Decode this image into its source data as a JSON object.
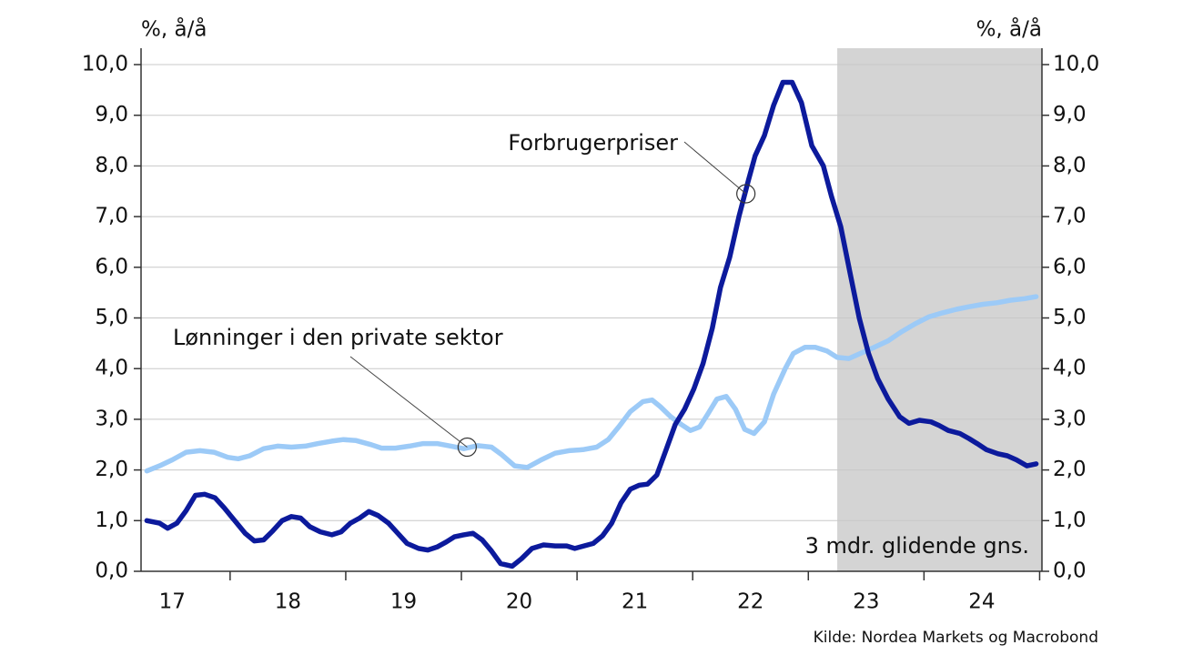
{
  "chart_data": {
    "type": "line",
    "y_unit_left": "%, å/å",
    "y_unit_right": "%, å/å",
    "source": "Kilde: Nordea Markets og Macrobond",
    "shaded_region": {
      "from": 2023.25,
      "to": 2025.02,
      "color": "#d4d4d4",
      "label": "3 mdr. glidende gns."
    },
    "xlim": [
      2017.23,
      2025.02
    ],
    "xticks": [
      {
        "value": 2017.5,
        "label": "17"
      },
      {
        "value": 2018.5,
        "label": "18"
      },
      {
        "value": 2019.5,
        "label": "19"
      },
      {
        "value": 2020.5,
        "label": "20"
      },
      {
        "value": 2021.5,
        "label": "21"
      },
      {
        "value": 2022.5,
        "label": "22"
      },
      {
        "value": 2023.5,
        "label": "23"
      },
      {
        "value": 2024.5,
        "label": "24"
      }
    ],
    "ylim": [
      0,
      10
    ],
    "yticks": [
      {
        "value": 0,
        "label": "0,0"
      },
      {
        "value": 1,
        "label": "1,0"
      },
      {
        "value": 2,
        "label": "2,0"
      },
      {
        "value": 3,
        "label": "3,0"
      },
      {
        "value": 4,
        "label": "4,0"
      },
      {
        "value": 5,
        "label": "5,0"
      },
      {
        "value": 6,
        "label": "6,0"
      },
      {
        "value": 7,
        "label": "7,0"
      },
      {
        "value": 8,
        "label": "8,0"
      },
      {
        "value": 9,
        "label": "9,0"
      },
      {
        "value": 10,
        "label": "10,0"
      }
    ],
    "y2lim": [
      0,
      10
    ],
    "y2ticks": [
      {
        "value": 0,
        "label": "0,0"
      },
      {
        "value": 1,
        "label": "1,0"
      },
      {
        "value": 2,
        "label": "2,0"
      },
      {
        "value": 3,
        "label": "3,0"
      },
      {
        "value": 4,
        "label": "4,0"
      },
      {
        "value": 5,
        "label": "5,0"
      },
      {
        "value": 6,
        "label": "6,0"
      },
      {
        "value": 7,
        "label": "7,0"
      },
      {
        "value": 8,
        "label": "8,0"
      },
      {
        "value": 9,
        "label": "9,0"
      },
      {
        "value": 10,
        "label": "10,0"
      }
    ],
    "grid": true,
    "series": [
      {
        "name": "Lønninger i den private sektor",
        "color": "#9ccaf7",
        "x": [
          2017.28,
          2017.39,
          2017.5,
          2017.62,
          2017.74,
          2017.86,
          2017.98,
          2018.07,
          2018.17,
          2018.29,
          2018.41,
          2018.53,
          2018.65,
          2018.76,
          2018.88,
          2018.98,
          2019.09,
          2019.22,
          2019.31,
          2019.43,
          2019.55,
          2019.67,
          2019.79,
          2019.91,
          2020.02,
          2020.14,
          2020.26,
          2020.35,
          2020.46,
          2020.57,
          2020.69,
          2020.81,
          2020.93,
          2021.05,
          2021.17,
          2021.27,
          2021.36,
          2021.46,
          2021.57,
          2021.65,
          2021.72,
          2021.81,
          2021.9,
          2021.98,
          2022.06,
          2022.13,
          2022.21,
          2022.29,
          2022.37,
          2022.45,
          2022.53,
          2022.62,
          2022.7,
          2022.8,
          2022.87,
          2022.97,
          2023.06,
          2023.16,
          2023.25,
          2023.35,
          2023.45,
          2023.57,
          2023.69,
          2023.8,
          2023.92,
          2024.04,
          2024.16,
          2024.28,
          2024.39,
          2024.51,
          2024.63,
          2024.75,
          2024.87,
          2024.97
        ],
        "values": [
          1.98,
          2.08,
          2.2,
          2.35,
          2.38,
          2.35,
          2.25,
          2.22,
          2.28,
          2.42,
          2.47,
          2.45,
          2.47,
          2.52,
          2.57,
          2.6,
          2.58,
          2.5,
          2.43,
          2.43,
          2.47,
          2.52,
          2.52,
          2.47,
          2.42,
          2.48,
          2.45,
          2.3,
          2.08,
          2.05,
          2.2,
          2.33,
          2.38,
          2.4,
          2.45,
          2.6,
          2.85,
          3.15,
          3.35,
          3.38,
          3.25,
          3.05,
          2.9,
          2.78,
          2.85,
          3.1,
          3.4,
          3.45,
          3.2,
          2.8,
          2.72,
          2.95,
          3.5,
          4.0,
          4.3,
          4.42,
          4.42,
          4.35,
          4.22,
          4.2,
          4.3,
          4.42,
          4.55,
          4.72,
          4.88,
          5.02,
          5.1,
          5.17,
          5.22,
          5.27,
          5.3,
          5.35,
          5.38,
          5.42
        ],
        "annotation": {
          "text": "Lønninger i den private sektor",
          "x": 2020.05,
          "y": 2.45
        }
      },
      {
        "name": "Forbrugerpriser",
        "color": "#0c1a9c",
        "x": [
          2017.28,
          2017.39,
          2017.46,
          2017.54,
          2017.62,
          2017.7,
          2017.78,
          2017.87,
          2017.95,
          2018.04,
          2018.13,
          2018.21,
          2018.29,
          2018.37,
          2018.45,
          2018.53,
          2018.61,
          2018.69,
          2018.78,
          2018.88,
          2018.96,
          2019.04,
          2019.12,
          2019.2,
          2019.28,
          2019.37,
          2019.45,
          2019.53,
          2019.63,
          2019.71,
          2019.79,
          2019.87,
          2019.94,
          2020.02,
          2020.1,
          2020.18,
          2020.26,
          2020.34,
          2020.44,
          2020.52,
          2020.61,
          2020.71,
          2020.81,
          2020.91,
          2020.98,
          2021.06,
          2021.14,
          2021.22,
          2021.3,
          2021.38,
          2021.46,
          2021.54,
          2021.61,
          2021.69,
          2021.77,
          2021.85,
          2021.93,
          2022.01,
          2022.09,
          2022.17,
          2022.24,
          2022.32,
          2022.4,
          2022.48,
          2022.54,
          2022.62,
          2022.7,
          2022.78,
          2022.86,
          2022.94,
          2023.03,
          2023.13,
          2023.2,
          2023.28,
          2023.36,
          2023.44,
          2023.52,
          2023.6,
          2023.69,
          2023.79,
          2023.87,
          2023.96,
          2024.06,
          2024.13,
          2024.21,
          2024.31,
          2024.39,
          2024.46,
          2024.54,
          2024.64,
          2024.72,
          2024.8,
          2024.89,
          2024.97
        ],
        "values": [
          1.0,
          0.95,
          0.85,
          0.95,
          1.2,
          1.5,
          1.52,
          1.45,
          1.25,
          1.0,
          0.75,
          0.6,
          0.62,
          0.8,
          1.0,
          1.08,
          1.05,
          0.88,
          0.78,
          0.72,
          0.78,
          0.95,
          1.05,
          1.18,
          1.1,
          0.95,
          0.75,
          0.55,
          0.45,
          0.42,
          0.48,
          0.58,
          0.68,
          0.72,
          0.75,
          0.62,
          0.4,
          0.15,
          0.1,
          0.25,
          0.45,
          0.52,
          0.5,
          0.5,
          0.45,
          0.5,
          0.55,
          0.7,
          0.95,
          1.35,
          1.62,
          1.7,
          1.72,
          1.9,
          2.4,
          2.9,
          3.2,
          3.6,
          4.1,
          4.8,
          5.6,
          6.2,
          7.0,
          7.7,
          8.2,
          8.6,
          9.2,
          9.65,
          9.65,
          9.25,
          8.4,
          8.0,
          7.4,
          6.8,
          5.9,
          5.0,
          4.3,
          3.8,
          3.4,
          3.05,
          2.92,
          2.98,
          2.95,
          2.88,
          2.78,
          2.72,
          2.62,
          2.52,
          2.4,
          2.32,
          2.28,
          2.2,
          2.08,
          2.12
        ],
        "annotation": {
          "text": "Forbrugerpriser",
          "x": 2022.46,
          "y": 7.45
        }
      }
    ]
  }
}
